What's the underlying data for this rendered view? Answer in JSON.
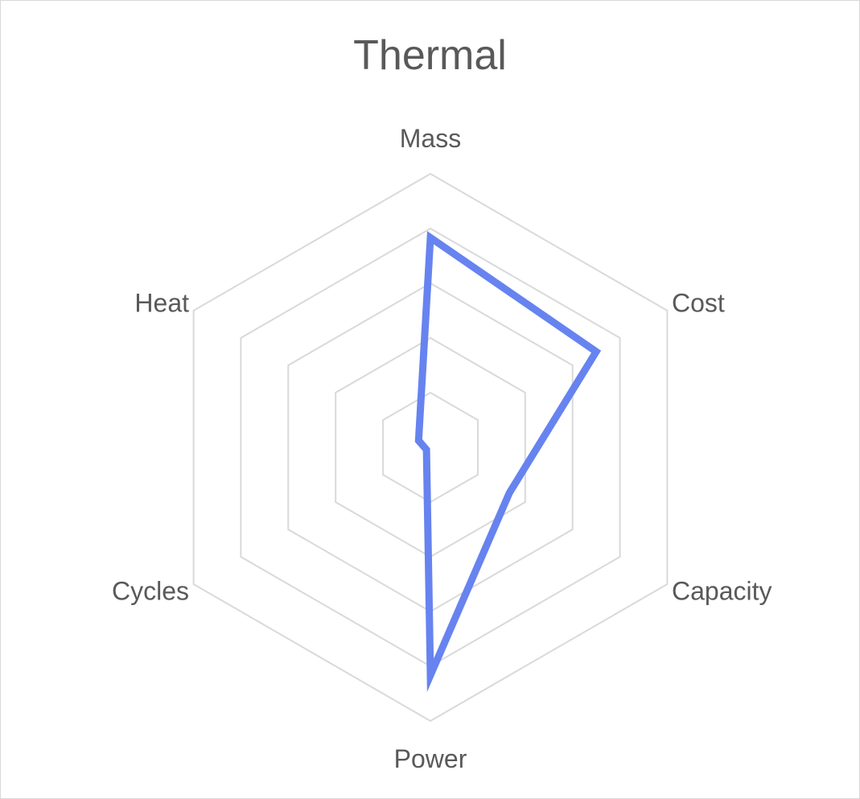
{
  "chart_data": {
    "type": "radar",
    "title": "Thermal",
    "categories": [
      "Mass",
      "Cost",
      "Capacity",
      "Power",
      "Cycles",
      "Heat"
    ],
    "series": [
      {
        "values": [
          4.6,
          4.2,
          2.0,
          5.0,
          0.1,
          0.3
        ],
        "color": "#6783F0"
      }
    ],
    "rlim": [
      0,
      6
    ],
    "rings": 5,
    "grid": true,
    "legend": "none",
    "grid_color": "#D9D9D9",
    "text_color": "#595959"
  }
}
